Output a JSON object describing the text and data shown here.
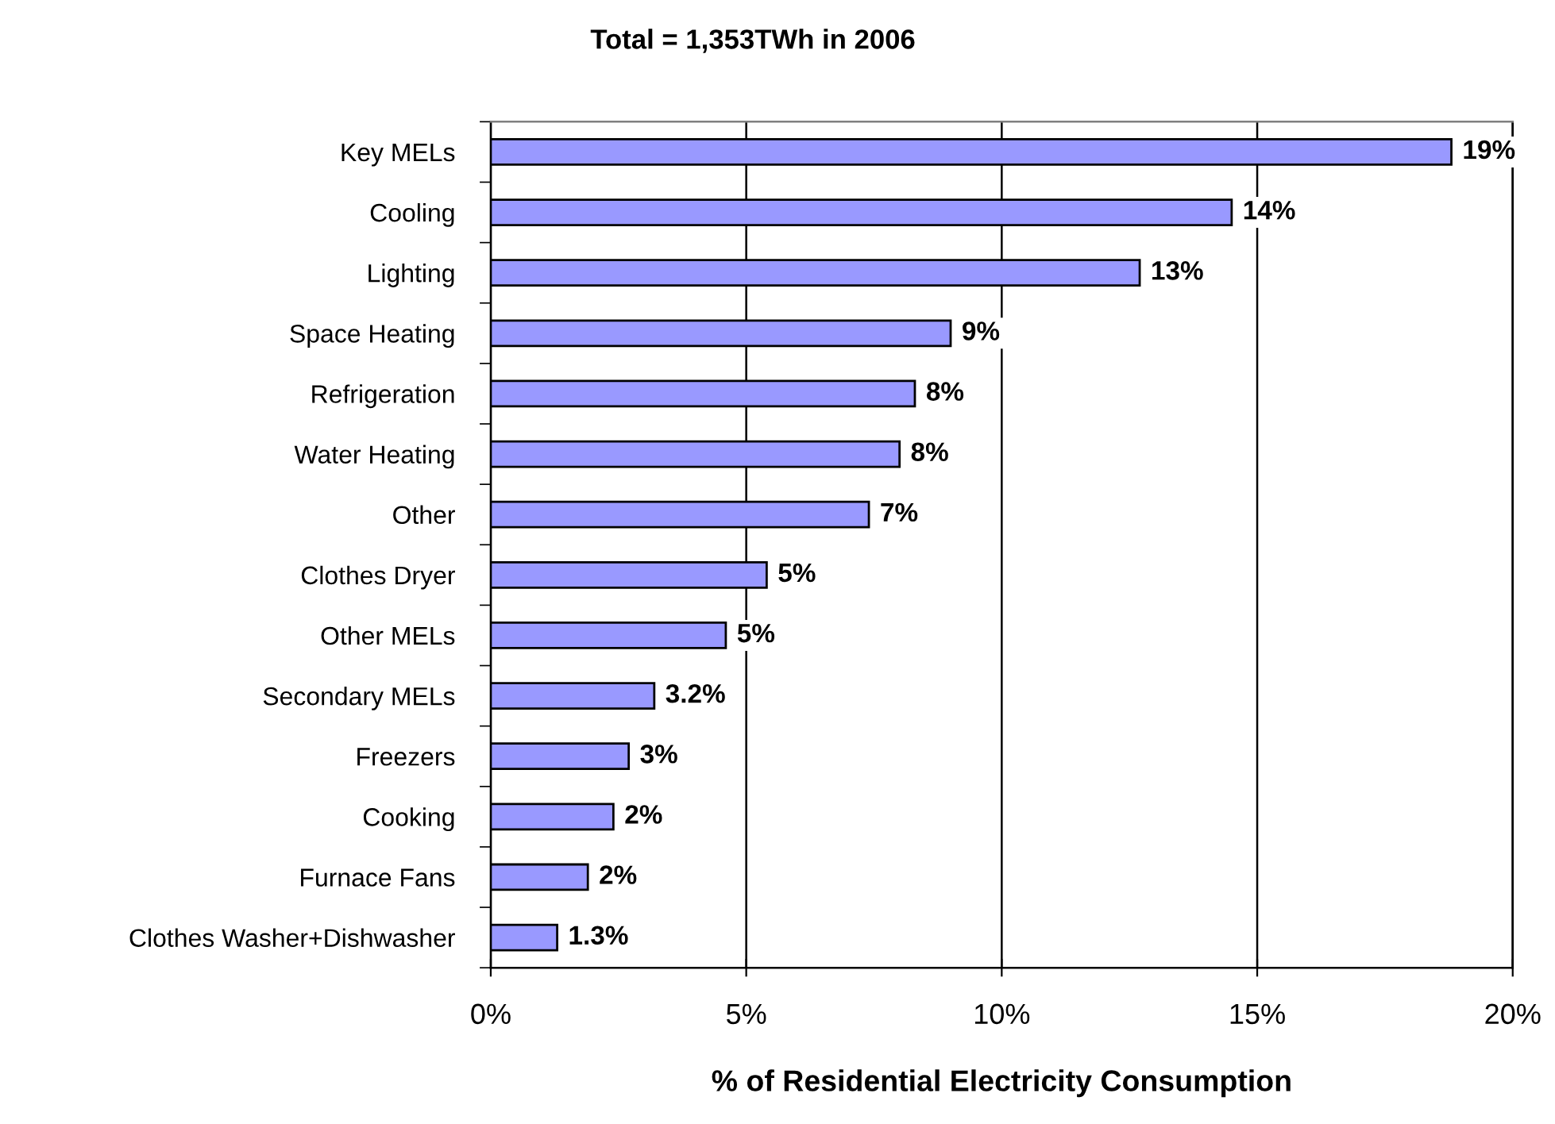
{
  "chart_data": {
    "type": "bar",
    "orientation": "horizontal",
    "title": "Total = 1,353TWh in 2006",
    "xlabel": "% of Residential Electricity Consumption",
    "categories": [
      "Key MELs",
      "Cooling",
      "Lighting",
      "Space Heating",
      "Refrigeration",
      "Water Heating",
      "Other",
      "Clothes Dryer",
      "Other MELs",
      "Secondary MELs",
      "Freezers",
      "Cooking",
      "Furnace Fans",
      "Clothes Washer+Dishwasher"
    ],
    "values": [
      18.8,
      14.5,
      12.7,
      9.0,
      8.3,
      8.0,
      7.4,
      5.4,
      4.6,
      3.2,
      2.7,
      2.4,
      1.9,
      1.3
    ],
    "value_labels": [
      "19%",
      "14%",
      "13%",
      "9%",
      "8%",
      "8%",
      "7%",
      "5%",
      "5%",
      "3.2%",
      "3%",
      "2%",
      "2%",
      "1.3%"
    ],
    "color": "#9999ff",
    "xlim": [
      0,
      20
    ],
    "xticks": [
      {
        "value": 0,
        "label": "0%"
      },
      {
        "value": 5,
        "label": "5%"
      },
      {
        "value": 10,
        "label": "10%"
      },
      {
        "value": 15,
        "label": "15%"
      },
      {
        "value": 20,
        "label": "20%"
      }
    ],
    "grid": "x"
  }
}
